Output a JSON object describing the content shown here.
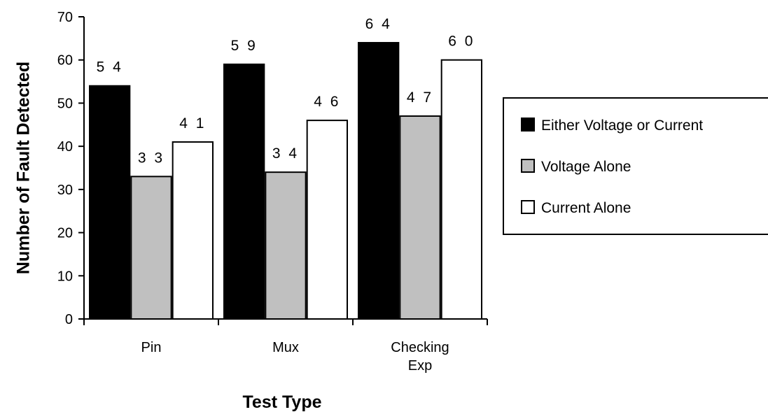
{
  "chart_data": {
    "type": "bar",
    "title": "",
    "xlabel": "Test Type",
    "ylabel": "Number of Fault Detected",
    "categories": [
      [
        "Pin"
      ],
      [
        "Mux"
      ],
      [
        "Checking",
        "Exp"
      ]
    ],
    "ylim": [
      0,
      70
    ],
    "yticks": [
      0,
      10,
      20,
      30,
      40,
      50,
      60,
      70
    ],
    "grid": false,
    "legend_position": "right",
    "series": [
      {
        "name": "Either Voltage or Current",
        "color": "#000000",
        "values": [
          54,
          59,
          64
        ],
        "data_labels": [
          "5 4",
          "5 9",
          "6 4"
        ]
      },
      {
        "name": "Voltage Alone",
        "color": "#c0c0c0",
        "values": [
          33,
          34,
          47
        ],
        "data_labels": [
          "3 3",
          "3 4",
          "4 7"
        ]
      },
      {
        "name": "Current Alone",
        "color": "#ffffff",
        "values": [
          41,
          46,
          60
        ],
        "data_labels": [
          "4 1",
          "4 6",
          "6 0"
        ]
      }
    ]
  }
}
